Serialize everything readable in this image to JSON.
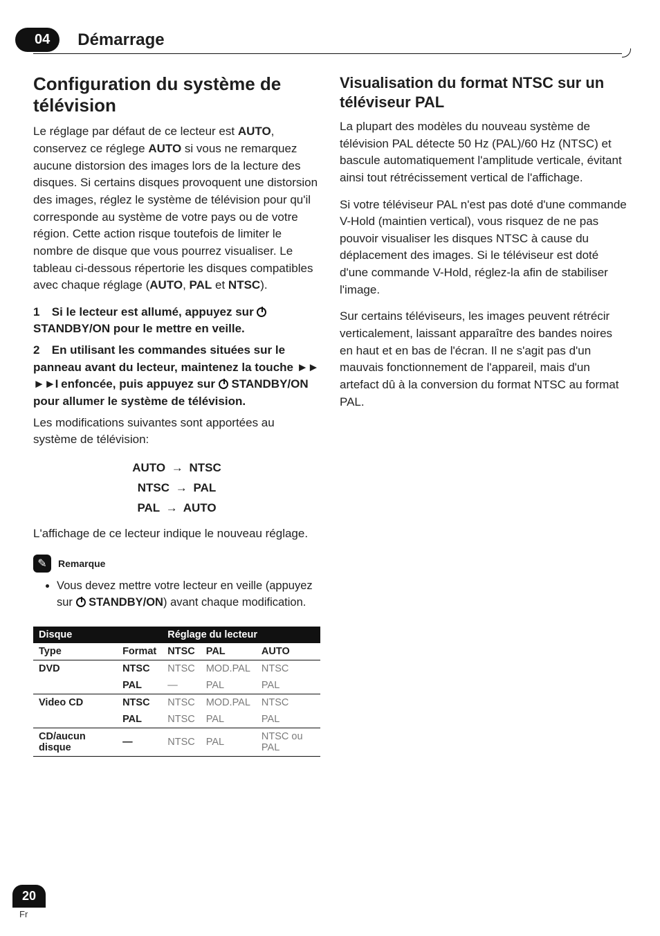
{
  "chapter": {
    "number": "04",
    "title": "Démarrage"
  },
  "left": {
    "h1": "Configuration du système de télévision",
    "intro_pre": "Le réglage par défaut de ce lecteur est ",
    "auto1": "AUTO",
    "intro_mid1": ", conservez ce réglege ",
    "auto2": "AUTO",
    "intro_mid2": " si vous ne remarquez aucune distorsion des images lors de la lecture des disques. Si certains disques provoquent une distorsion des images, réglez le système de télévision pour qu'il corresponde au système de votre pays ou de votre région. Cette action risque toutefois de limiter le nombre de disque que vous pourrez visualiser. Le tableau ci-dessous répertorie les disques compatibles avec chaque réglage (",
    "auto3": "AUTO",
    "intro_mid3": ", ",
    "pal_b": "PAL",
    "intro_mid4": " et ",
    "ntsc_b": "NTSC",
    "intro_end": ").",
    "step1_num": "1",
    "step1_a": "Si le lecteur est allumé, appuyez sur ",
    "step1_b": " STANDBY/ON pour le mettre en veille.",
    "step2_num": "2",
    "step2_a": "En utilisant les commandes situées sur le panneau avant du lecteur, maintenez la touche ",
    "step2_b": " enfoncée, puis appuyez sur ",
    "step2_c": " STANDBY/ON pour allumer le système de télévision.",
    "step2_body": "Les modifications suivantes sont apportées au système de télévision:",
    "seq": {
      "a1": "AUTO",
      "a2": "NTSC",
      "b1": "NTSC",
      "b2": "PAL",
      "c1": "PAL",
      "c2": "AUTO"
    },
    "after_seq": "L'affichage de ce lecteur indique le nouveau réglage.",
    "note_label": "Remarque",
    "note_item_a": "Vous devez mettre votre lecteur en veille (appuyez sur ",
    "note_item_b": " STANDBY/ON",
    "note_item_c": ") avant chaque modification.",
    "table": {
      "hdr_disque": "Disque",
      "hdr_reglage": "Réglage du lecteur",
      "col_type": "Type",
      "col_format": "Format",
      "col_ntsc": "NTSC",
      "col_pal": "PAL",
      "col_auto": "AUTO",
      "r1_type": "DVD",
      "r1_format": "NTSC",
      "r1_ntsc": "NTSC",
      "r1_pal": "MOD.PAL",
      "r1_auto": "NTSC",
      "r2_format": "PAL",
      "r2_ntsc": "—",
      "r2_pal": "PAL",
      "r2_auto": "PAL",
      "r3_type": "Video CD",
      "r3_format": "NTSC",
      "r3_ntsc": "NTSC",
      "r3_pal": "MOD.PAL",
      "r3_auto": "NTSC",
      "r4_format": "PAL",
      "r4_ntsc": "NTSC",
      "r4_pal": "PAL",
      "r4_auto": "PAL",
      "r5_type": "CD/aucun disque",
      "r5_format": "—",
      "r5_ntsc": "NTSC",
      "r5_pal": "PAL",
      "r5_auto": "NTSC ou PAL"
    }
  },
  "right": {
    "h2": "Visualisation du format NTSC sur un téléviseur PAL",
    "p1": "La plupart des modèles du nouveau système de télévision PAL détecte 50 Hz (PAL)/60 Hz (NTSC) et bascule automatiquement l'amplitude verticale, évitant ainsi tout rétrécissement vertical de l'affichage.",
    "p2": "Si votre téléviseur PAL n'est pas doté d'une commande V-Hold (maintien vertical), vous risquez de ne pas pouvoir visualiser les disques NTSC à cause du déplacement des images. Si le téléviseur est doté d'une commande V-Hold, réglez-la afin de stabiliser l'image.",
    "p3": "Sur certains téléviseurs, les images peuvent rétrécir verticalement, laissant apparaître des bandes noires en haut et en bas de l'écran. Il ne s'agit pas d'un mauvais fonctionnement de l'appareil, mais d'un artefact dû à la conversion du format NTSC au format PAL."
  },
  "footer": {
    "page": "20",
    "lang": "Fr"
  },
  "colors": {
    "ink": "#111111",
    "gray": "#7a7a7a",
    "bg": "#ffffff"
  }
}
